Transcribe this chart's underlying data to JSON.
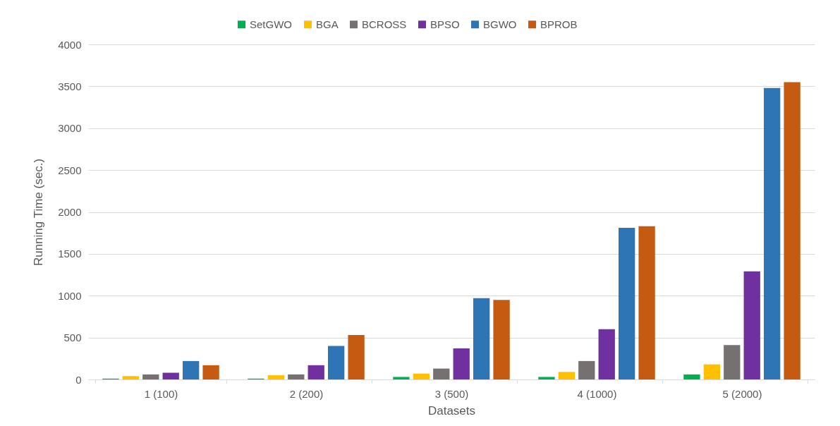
{
  "chart_data": {
    "type": "bar",
    "xlabel": "Datasets",
    "ylabel": "Running Time (sec.)",
    "categories": [
      "1 (100)",
      "2 (200)",
      "3 (500)",
      "4 (1000)",
      "5 (2000)"
    ],
    "series": [
      {
        "name": "SetGWO",
        "color": "#00b050",
        "values": [
          10,
          10,
          30,
          30,
          60
        ]
      },
      {
        "name": "BGA",
        "color": "#ffc000",
        "values": [
          40,
          50,
          70,
          90,
          180
        ]
      },
      {
        "name": "BCROSS",
        "color": "#767171",
        "values": [
          60,
          60,
          130,
          220,
          410
        ]
      },
      {
        "name": "BPSO",
        "color": "#7030a0",
        "values": [
          80,
          170,
          370,
          600,
          1290
        ]
      },
      {
        "name": "BGWO",
        "color": "#2e75b6",
        "values": [
          220,
          400,
          970,
          1810,
          3480
        ]
      },
      {
        "name": "BPROB",
        "color": "#c55a11",
        "values": [
          170,
          530,
          950,
          1830,
          3550
        ]
      }
    ],
    "ylim": [
      0,
      4000
    ],
    "yticks": [
      0,
      500,
      1000,
      1500,
      2000,
      2500,
      3000,
      3500,
      4000
    ],
    "grid": "y",
    "legend": "top"
  }
}
